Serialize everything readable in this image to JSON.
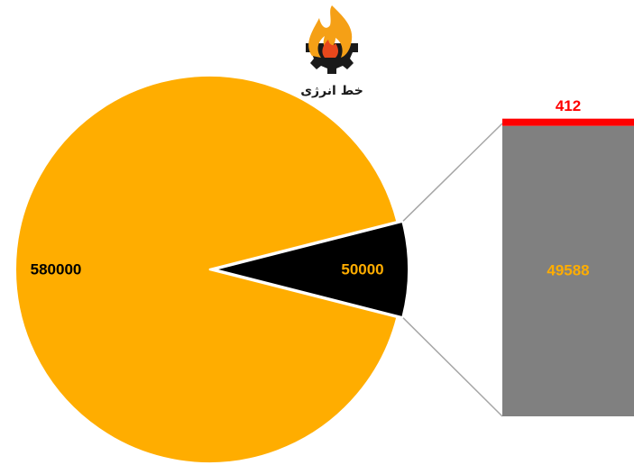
{
  "logo": {
    "text": "خط انرژی",
    "colors": {
      "flame": "#f5a016",
      "flame_inner": "#e8481c",
      "gear": "#1a1a1a",
      "text_red": "#e31e24",
      "text_dark": "#1a1a1a"
    }
  },
  "chart_data": {
    "type": "bar-of-pie",
    "pie": {
      "slices": [
        {
          "value": 580000,
          "label": "580000",
          "color": "#FFAD00",
          "label_color": "#000000"
        },
        {
          "value": 50000,
          "label": "50000",
          "color": "#000000",
          "label_color": "#FFAD00",
          "exploded": true
        }
      ]
    },
    "bar": {
      "breakdown_of": "50000",
      "segments": [
        {
          "value": 49588,
          "label": "49588",
          "color": "#808080",
          "label_color": "#FFAD00"
        },
        {
          "value": 412,
          "label": "412",
          "color": "#FF0000",
          "label_color": "#FF0000"
        }
      ]
    },
    "connector_color": "#A6A6A6",
    "legend": "none",
    "grid": false
  }
}
